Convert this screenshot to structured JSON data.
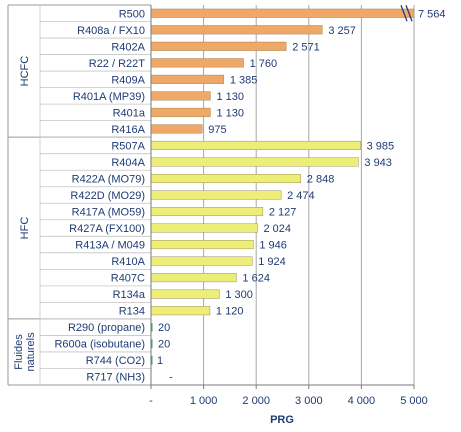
{
  "chart_data": {
    "type": "bar",
    "orientation": "horizontal",
    "title": "",
    "xlabel": "PRG",
    "ylabel": "",
    "xlim": [
      0,
      5000
    ],
    "x_ticks": [
      0,
      1000,
      2000,
      3000,
      4000,
      5000
    ],
    "x_tick_labels": [
      "-",
      "1 000",
      "2 000",
      "3 000",
      "4 000",
      "5 000"
    ],
    "grid": "vertical",
    "axis_break_note": "R500 bar truncated at 5 000",
    "groups": [
      {
        "name": "HCFC",
        "color": "#f0a868",
        "items": [
          {
            "label": "R500",
            "value": 7564,
            "value_label": "7 564"
          },
          {
            "label": "R408a / FX10",
            "value": 3257,
            "value_label": "3 257"
          },
          {
            "label": "R402A",
            "value": 2571,
            "value_label": "2 571"
          },
          {
            "label": "R22 / R22T",
            "value": 1760,
            "value_label": "1 760"
          },
          {
            "label": "R409A",
            "value": 1385,
            "value_label": "1 385"
          },
          {
            "label": "R401A (MP39)",
            "value": 1130,
            "value_label": "1 130"
          },
          {
            "label": "R401a",
            "value": 1130,
            "value_label": "1 130"
          },
          {
            "label": "R416A",
            "value": 975,
            "value_label": "975"
          }
        ]
      },
      {
        "name": "HFC",
        "color": "#ecee78",
        "items": [
          {
            "label": "R507A",
            "value": 3985,
            "value_label": "3 985"
          },
          {
            "label": "R404A",
            "value": 3943,
            "value_label": "3 943"
          },
          {
            "label": "R422A (MO79)",
            "value": 2848,
            "value_label": "2 848"
          },
          {
            "label": "R422D (MO29)",
            "value": 2474,
            "value_label": "2 474"
          },
          {
            "label": "R417A (MO59)",
            "value": 2127,
            "value_label": "2 127"
          },
          {
            "label": "R427A (FX100)",
            "value": 2024,
            "value_label": "2 024"
          },
          {
            "label": "R413A / M049",
            "value": 1946,
            "value_label": "1 946"
          },
          {
            "label": "R410A",
            "value": 1924,
            "value_label": "1 924"
          },
          {
            "label": "R407C",
            "value": 1624,
            "value_label": "1 624"
          },
          {
            "label": "R134a",
            "value": 1300,
            "value_label": "1 300"
          },
          {
            "label": "R134",
            "value": 1120,
            "value_label": "1 120"
          }
        ]
      },
      {
        "name": "Fluides naturels",
        "name_lines": [
          "Fluides",
          "naturels"
        ],
        "color": "#3aa36a",
        "items": [
          {
            "label": "R290 (propane)",
            "value": 20,
            "value_label": "20"
          },
          {
            "label": "R600a (isobutane)",
            "value": 20,
            "value_label": "20"
          },
          {
            "label": "R744 (CO2)",
            "value": 1,
            "value_label": "1"
          },
          {
            "label": "R717 (NH3)",
            "value": 0,
            "value_label": "-"
          }
        ]
      }
    ]
  }
}
